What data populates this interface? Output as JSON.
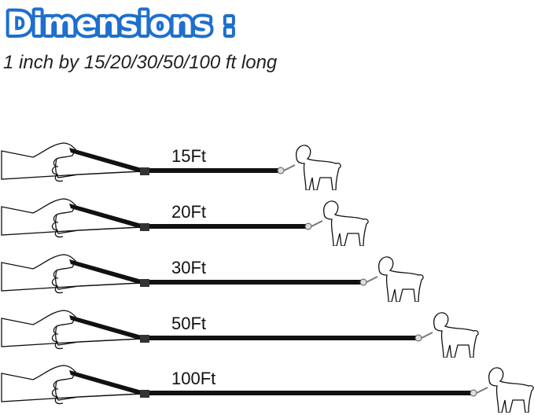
{
  "title": "Dimensions :",
  "subtitle": "1 inch by 15/20/30/50/100 ft long",
  "colors": {
    "title_outline": "#1e6fce",
    "title_fill": "#ffffff",
    "leash": "#111111"
  },
  "rows": [
    {
      "label": "15Ft"
    },
    {
      "label": "20Ft"
    },
    {
      "label": "30Ft"
    },
    {
      "label": "50Ft"
    },
    {
      "label": "100Ft"
    }
  ]
}
